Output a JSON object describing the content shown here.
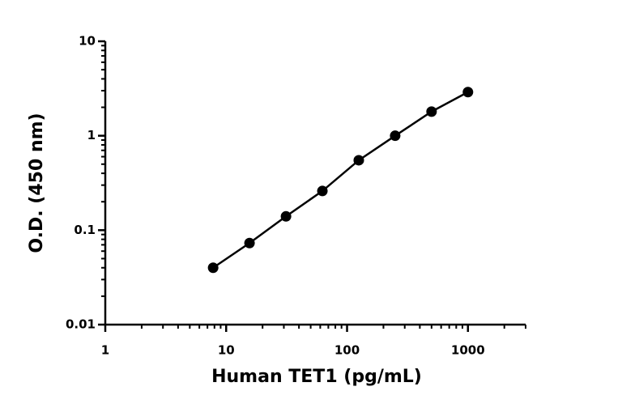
{
  "chart_data": {
    "type": "scatter",
    "x_label": "Human TET1 (pg/mL)",
    "y_label": "O.D. (450 nm)",
    "x": [
      7.8,
      15.6,
      31.25,
      62.5,
      125,
      250,
      500,
      1000
    ],
    "values": [
      0.04,
      0.073,
      0.14,
      0.26,
      0.55,
      1.0,
      1.8,
      2.9
    ],
    "color": "#000000",
    "x_log": true,
    "y_log": true,
    "xlim": [
      1,
      3000
    ],
    "ylim": [
      0.01,
      10
    ],
    "xticks": [
      1,
      10,
      100,
      1000
    ],
    "yticks": [
      0.01,
      0.1,
      1,
      10
    ],
    "xminorticks": [
      2,
      3,
      4,
      5,
      6,
      7,
      8,
      9,
      20,
      30,
      40,
      50,
      60,
      70,
      80,
      90,
      200,
      300,
      400,
      500,
      600,
      700,
      800,
      900,
      2000,
      3000
    ],
    "yminorticks": [
      0.02,
      0.03,
      0.04,
      0.05,
      0.06,
      0.07,
      0.08,
      0.09,
      0.2,
      0.3,
      0.4,
      0.5,
      0.6,
      0.7,
      0.8,
      0.9,
      2,
      3,
      4,
      5,
      6,
      7,
      8,
      9
    ],
    "connect_points": true
  }
}
